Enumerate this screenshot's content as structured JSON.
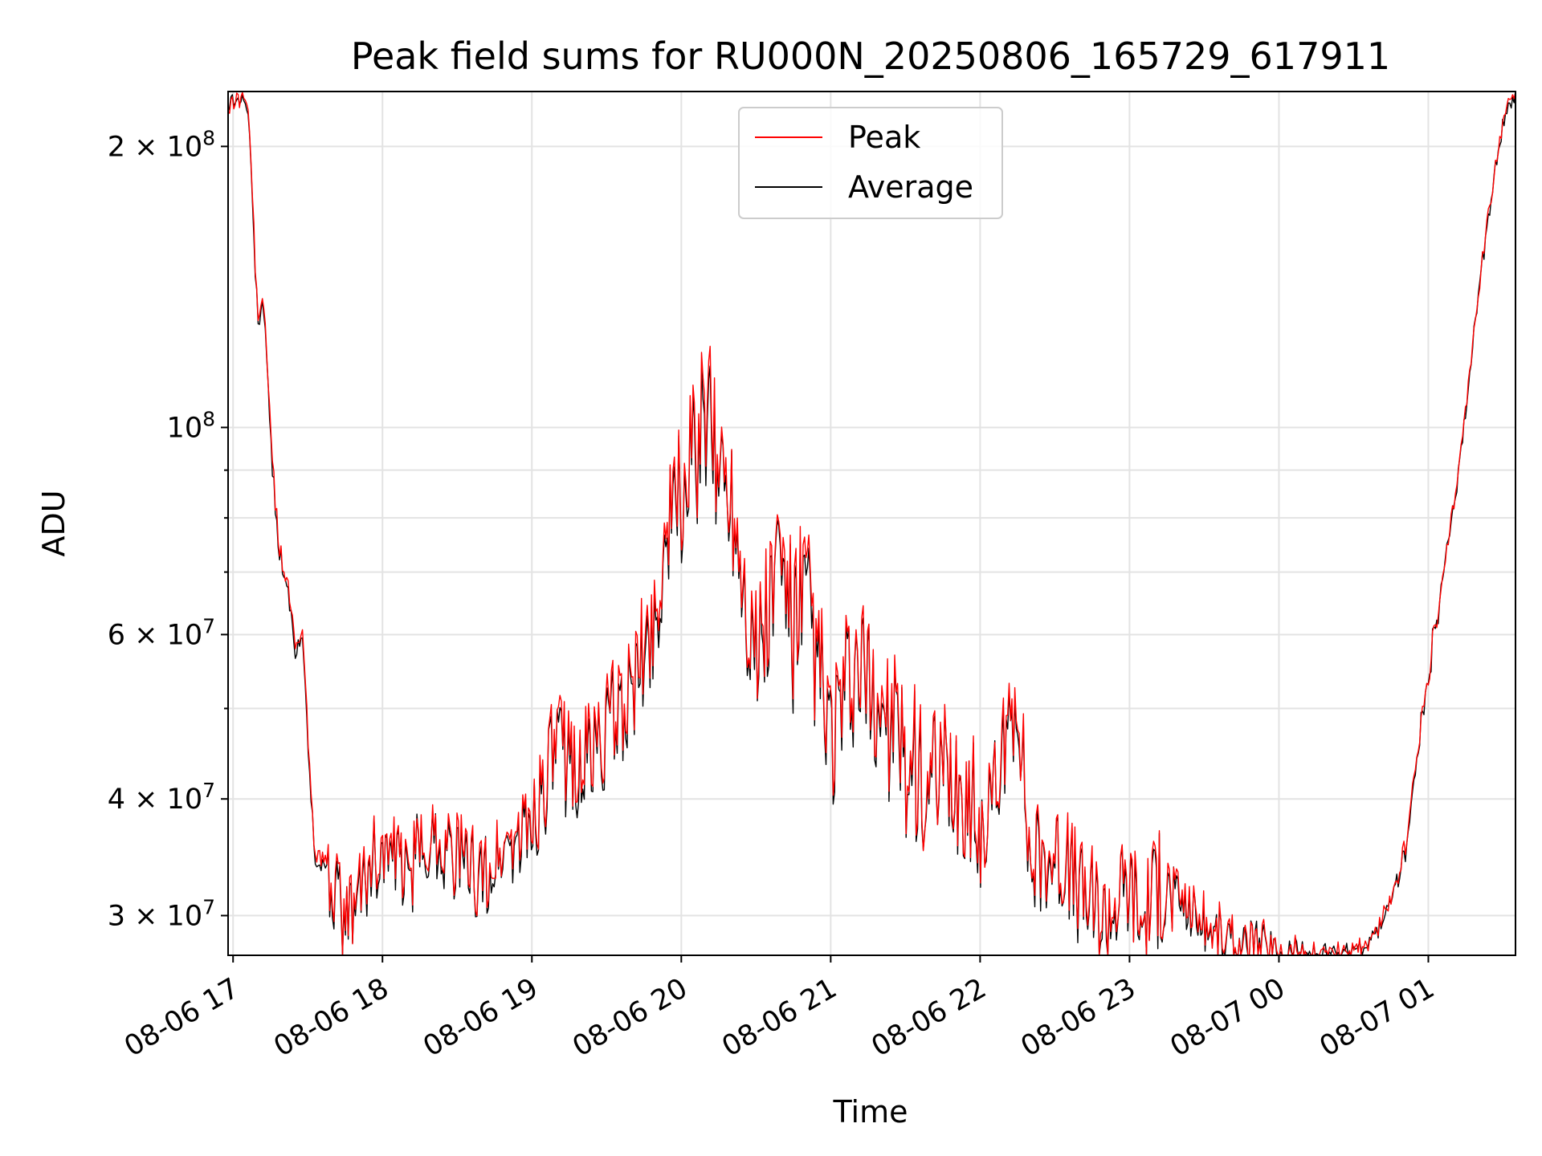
{
  "chart_data": {
    "type": "line",
    "title": "Peak field sums for RU000N_20250806_165729_617911",
    "xlabel": "Time",
    "ylabel": "ADU",
    "yscale": "log",
    "xlim": [
      "08-06 16:58",
      "08-07 01:35"
    ],
    "ylim": [
      27200000,
      229000000
    ],
    "grid": true,
    "legend_position": "upper center",
    "x_ticks": [
      "08-06 17",
      "08-06 18",
      "08-06 19",
      "08-06 20",
      "08-06 21",
      "08-06 22",
      "08-06 23",
      "08-07 00",
      "08-07 01"
    ],
    "y_ticks": [
      {
        "value": 30000000,
        "mantissa": "3",
        "exp": "7"
      },
      {
        "value": 40000000,
        "mantissa": "4",
        "exp": "7"
      },
      {
        "value": 60000000,
        "mantissa": "6",
        "exp": "7"
      },
      {
        "value": 100000000,
        "mantissa": "",
        "exp": "8"
      },
      {
        "value": 200000000,
        "mantissa": "2",
        "exp": "8"
      }
    ],
    "x": [
      "08-06 16:58",
      "08-06 17:02",
      "08-06 17:06",
      "08-06 17:08",
      "08-06 17:10",
      "08-06 17:12",
      "08-06 17:15",
      "08-06 17:18",
      "08-06 17:22",
      "08-06 17:25",
      "08-06 17:28",
      "08-06 17:33",
      "08-06 17:36",
      "08-06 17:40",
      "08-06 17:45",
      "08-06 17:50",
      "08-06 17:55",
      "08-06 18:00",
      "08-06 18:10",
      "08-06 18:20",
      "08-06 18:30",
      "08-06 18:40",
      "08-06 18:50",
      "08-06 18:55",
      "08-06 19:00",
      "08-06 19:10",
      "08-06 19:20",
      "08-06 19:30",
      "08-06 19:40",
      "08-06 19:50",
      "08-06 19:55",
      "08-06 20:00",
      "08-06 20:05",
      "08-06 20:10",
      "08-06 20:15",
      "08-06 20:20",
      "08-06 20:30",
      "08-06 20:40",
      "08-06 20:45",
      "08-06 20:50",
      "08-06 21:00",
      "08-06 21:10",
      "08-06 21:20",
      "08-06 21:30",
      "08-06 21:40",
      "08-06 21:50",
      "08-06 21:55",
      "08-06 22:00",
      "08-06 22:08",
      "08-06 22:15",
      "08-06 22:20",
      "08-06 22:30",
      "08-06 22:40",
      "08-06 22:50",
      "08-06 23:00",
      "08-06 23:05",
      "08-06 23:10",
      "08-06 23:20",
      "08-06 23:30",
      "08-06 23:40",
      "08-06 23:50",
      "08-07 00:00",
      "08-07 00:10",
      "08-07 00:20",
      "08-07 00:30",
      "08-07 00:35",
      "08-07 00:40",
      "08-07 00:45",
      "08-07 00:50",
      "08-07 00:55",
      "08-07 01:00",
      "08-07 01:05",
      "08-07 01:10",
      "08-07 01:15",
      "08-07 01:20",
      "08-07 01:25",
      "08-07 01:30",
      "08-07 01:35"
    ],
    "series": [
      {
        "name": "Peak",
        "color": "#ff0000",
        "values": [
          222000000,
          228000000,
          223000000,
          170000000,
          130000000,
          140000000,
          100000000,
          76000000,
          68000000,
          58000000,
          60000000,
          34000000,
          35000000,
          32500000,
          29500000,
          31500000,
          34500000,
          35500000,
          33500000,
          37000000,
          35000000,
          33000000,
          36000000,
          36500000,
          38500000,
          46000000,
          44000000,
          48000000,
          52000000,
          64000000,
          80000000,
          86000000,
          92000000,
          105000000,
          92000000,
          88000000,
          57000000,
          74000000,
          62000000,
          67000000,
          46500000,
          55000000,
          51000000,
          45000000,
          40500000,
          42000000,
          40000000,
          37000000,
          42500000,
          54000000,
          34500000,
          35500000,
          32500000,
          30000000,
          33000000,
          29500000,
          32500000,
          31500000,
          29500000,
          28200000,
          27600000,
          27400000,
          27400000,
          27400000,
          27600000,
          28000000,
          29000000,
          31000000,
          35000000,
          43000000,
          55000000,
          66000000,
          82000000,
          105000000,
          140000000,
          175000000,
          215000000,
          229000000
        ]
      },
      {
        "name": "Average",
        "color": "#000000",
        "values": [
          220000000,
          226000000,
          221000000,
          168000000,
          128000000,
          138000000,
          98000000,
          75000000,
          67000000,
          57000000,
          59000000,
          33500000,
          34500000,
          32000000,
          29200000,
          31000000,
          34000000,
          35000000,
          33000000,
          36500000,
          34500000,
          32500000,
          35500000,
          36000000,
          38000000,
          45000000,
          43000000,
          47000000,
          51000000,
          62000000,
          78000000,
          84000000,
          90000000,
          100000000,
          90000000,
          86000000,
          56000000,
          72000000,
          60000000,
          65000000,
          45500000,
          54000000,
          50000000,
          44000000,
          40000000,
          41500000,
          39500000,
          36500000,
          42000000,
          53000000,
          34000000,
          35000000,
          32000000,
          29500000,
          32500000,
          29200000,
          32000000,
          31000000,
          29200000,
          28000000,
          27500000,
          27300000,
          27300000,
          27300000,
          27500000,
          27900000,
          28800000,
          30800000,
          34800000,
          42800000,
          54800000,
          65800000,
          81500000,
          104000000,
          139000000,
          174000000,
          214000000,
          228000000
        ]
      }
    ]
  }
}
